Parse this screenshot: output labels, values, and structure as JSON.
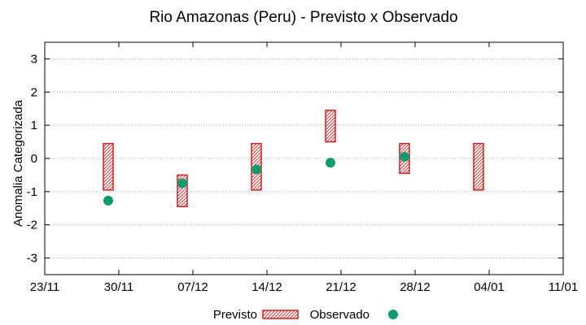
{
  "chart_data": {
    "type": "range-bar-with-points",
    "title": "Rio Amazonas (Peru) - Previsto x Observado",
    "xlabel": "",
    "ylabel": "Anomalia Categorizada",
    "ylim": [
      -3.5,
      3.5
    ],
    "yticks": [
      -3,
      -2,
      -1,
      0,
      1,
      2,
      3
    ],
    "xlim_days": [
      0,
      49
    ],
    "xticks": [
      {
        "label": "23/11",
        "day": 0
      },
      {
        "label": "30/11",
        "day": 7
      },
      {
        "label": "07/12",
        "day": 14
      },
      {
        "label": "14/12",
        "day": 21
      },
      {
        "label": "21/12",
        "day": 28
      },
      {
        "label": "28/12",
        "day": 35
      },
      {
        "label": "04/01",
        "day": 42
      },
      {
        "label": "11/01",
        "day": 49
      }
    ],
    "grid": "horizontal dotted",
    "legend_position": "bottom-center",
    "series": [
      {
        "name": "Previsto",
        "kind": "range-bar",
        "color": "#cc2222",
        "points": [
          {
            "day": 6,
            "low": -0.95,
            "high": 0.45
          },
          {
            "day": 13,
            "low": -1.45,
            "high": -0.5
          },
          {
            "day": 20,
            "low": -0.95,
            "high": 0.45
          },
          {
            "day": 27,
            "low": 0.5,
            "high": 1.45
          },
          {
            "day": 34,
            "low": -0.45,
            "high": 0.45
          },
          {
            "day": 41,
            "low": -0.95,
            "high": 0.45
          }
        ]
      },
      {
        "name": "Observado",
        "kind": "points",
        "color": "#109a6e",
        "points": [
          {
            "day": 6,
            "value": -1.27
          },
          {
            "day": 13,
            "value": -0.75
          },
          {
            "day": 20,
            "value": -0.33
          },
          {
            "day": 27,
            "value": -0.13
          },
          {
            "day": 34,
            "value": 0.05
          }
        ]
      }
    ]
  }
}
